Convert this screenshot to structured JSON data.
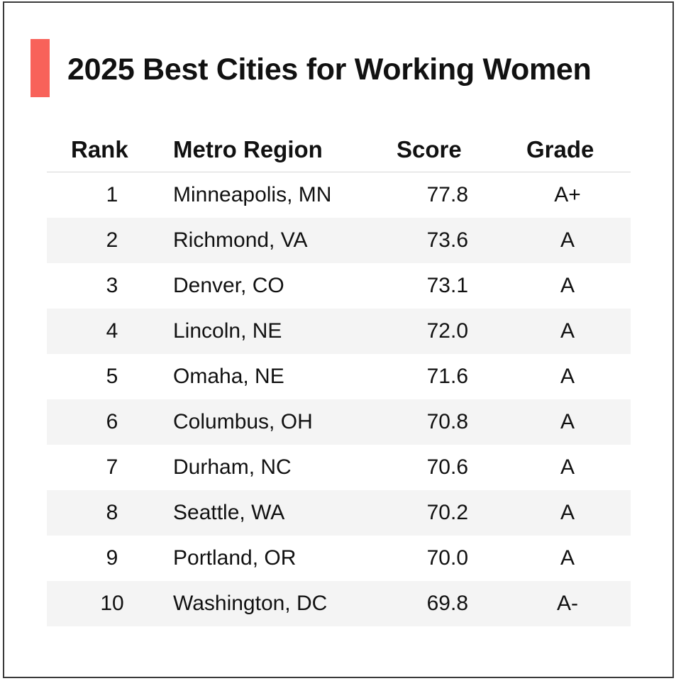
{
  "chart_data": {
    "type": "table",
    "title": "2025 Best Cities for Working Women",
    "accent_color": "#f8625a",
    "row_shade_color": "#f4f4f4",
    "columns": [
      "Rank",
      "Metro Region",
      "Score",
      "Grade"
    ],
    "rows": [
      {
        "rank": "1",
        "metro": "Minneapolis, MN",
        "score": "77.8",
        "grade": "A+"
      },
      {
        "rank": "2",
        "metro": "Richmond, VA",
        "score": "73.6",
        "grade": "A"
      },
      {
        "rank": "3",
        "metro": "Denver, CO",
        "score": "73.1",
        "grade": "A"
      },
      {
        "rank": "4",
        "metro": "Lincoln, NE",
        "score": "72.0",
        "grade": "A"
      },
      {
        "rank": "5",
        "metro": "Omaha, NE",
        "score": "71.6",
        "grade": "A"
      },
      {
        "rank": "6",
        "metro": "Columbus, OH",
        "score": "70.8",
        "grade": "A"
      },
      {
        "rank": "7",
        "metro": "Durham, NC",
        "score": "70.6",
        "grade": "A"
      },
      {
        "rank": "8",
        "metro": "Seattle, WA",
        "score": "70.2",
        "grade": "A"
      },
      {
        "rank": "9",
        "metro": "Portland, OR",
        "score": "70.0",
        "grade": "A"
      },
      {
        "rank": "10",
        "metro": "Washington, DC",
        "score": "69.8",
        "grade": "A-"
      }
    ]
  }
}
